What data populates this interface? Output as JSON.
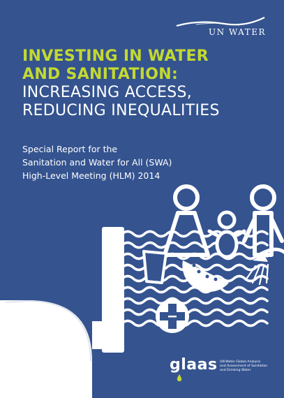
{
  "logo": {
    "text": "UN WATER",
    "icon": "wave-swoosh-icon"
  },
  "title": {
    "line1": "INVESTING IN WATER",
    "line2": "AND SANITATION:",
    "line3": "INCREASING ACCESS,",
    "line4": "REDUCING INEQUALITIES"
  },
  "subtitle": {
    "line1": "Special Report for the",
    "line2": "Sanitation and Water for All (SWA)",
    "line3": "High-Level Meeting (HLM) 2014"
  },
  "glaas": {
    "word": "glaas",
    "desc1": "UN-Water Global Analysis",
    "desc2": "and Assessment of Sanitation",
    "desc3": "and Drinking Water"
  },
  "colors": {
    "background": "#34538f",
    "accent": "#c4d92f",
    "foreground": "#ffffff"
  }
}
